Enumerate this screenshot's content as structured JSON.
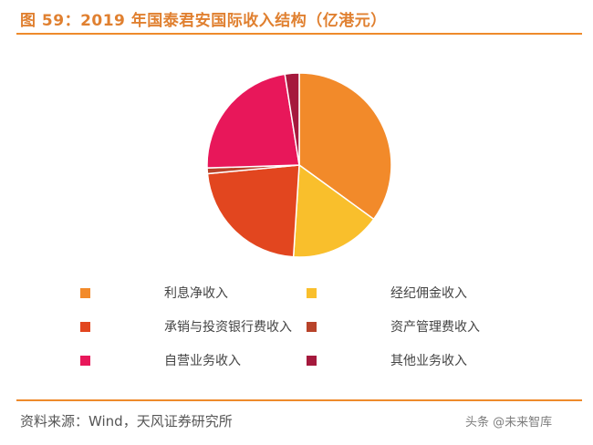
{
  "header": {
    "title": "图 59：2019 年国泰君安国际收入结构（亿港元）"
  },
  "chart_data": {
    "type": "pie",
    "title": "图 59：2019 年国泰君安国际收入结构（亿港元）",
    "slices": [
      {
        "label": "利息净收入",
        "value": 35.0,
        "color": "#f28a2a"
      },
      {
        "label": "经纪佣金收入",
        "value": 16.0,
        "color": "#f9bf2c"
      },
      {
        "label": "承销与投资银行费收入",
        "value": 22.5,
        "color": "#e2461f"
      },
      {
        "label": "资产管理费收入",
        "value": 1.0,
        "color": "#b8432a"
      },
      {
        "label": "自营业务收入",
        "value": 23.0,
        "color": "#e8175a"
      },
      {
        "label": "其他业务收入",
        "value": 2.5,
        "color": "#a5193d"
      }
    ],
    "legend_position": "bottom"
  },
  "footer": {
    "source": "资料来源：Wind，天风证券研究所",
    "watermark": "头条 @未来智库"
  }
}
